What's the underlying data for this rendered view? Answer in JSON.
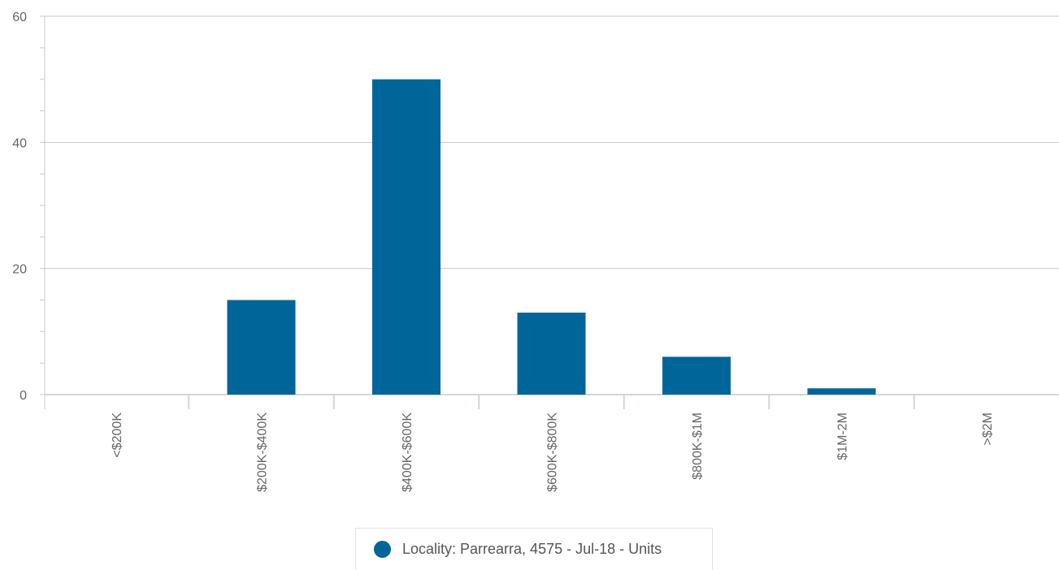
{
  "chart_data": {
    "type": "bar",
    "categories": [
      "<$200K",
      "$200K-$400K",
      "$400K-$600K",
      "$600K-$800K",
      "$800K-$1M",
      "$1M-2M",
      ">$2M"
    ],
    "series": [
      {
        "name": "Locality: Parrearra, 4575 - Jul-18 - Units",
        "values": [
          0,
          15,
          50,
          13,
          6,
          1,
          0
        ]
      }
    ],
    "y_ticks": [
      "0",
      "20",
      "40",
      "60"
    ],
    "ylim": [
      0,
      60
    ],
    "grid": true,
    "legend_position": "bottom-center",
    "bar_color": "#006699",
    "title": "",
    "xlabel": "",
    "ylabel": ""
  }
}
